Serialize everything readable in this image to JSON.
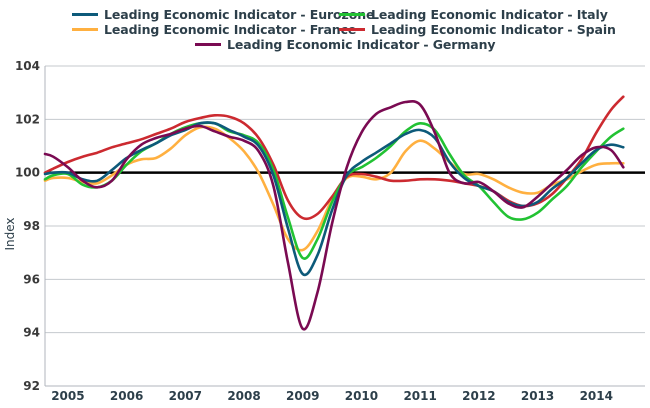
{
  "chart_data": {
    "type": "line",
    "title": "",
    "xlabel": "",
    "ylabel": "Index",
    "ylim": [
      92,
      104
    ],
    "xlim": [
      2005.11,
      2015.33
    ],
    "yticks": [
      92,
      94,
      96,
      98,
      100,
      102,
      104
    ],
    "xtick_labels": [
      "2005",
      "2006",
      "2007",
      "2008",
      "2009",
      "2010",
      "2011",
      "2012",
      "2013",
      "2014"
    ],
    "xtick_positions": [
      2005.5,
      2006.5,
      2007.5,
      2008.5,
      2009.5,
      2010.5,
      2011.5,
      2012.5,
      2013.5,
      2014.5
    ],
    "reference_line": {
      "y": 100,
      "color": "#000000"
    },
    "grid": "horizontal",
    "legend_position": "top",
    "x": [
      2005.11,
      2005.25,
      2005.5,
      2005.75,
      2006.0,
      2006.25,
      2006.5,
      2006.75,
      2007.0,
      2007.25,
      2007.5,
      2007.75,
      2008.0,
      2008.25,
      2008.5,
      2008.75,
      2009.0,
      2009.25,
      2009.5,
      2009.75,
      2010.0,
      2010.25,
      2010.5,
      2010.75,
      2011.0,
      2011.25,
      2011.5,
      2011.75,
      2012.0,
      2012.25,
      2012.5,
      2012.75,
      2013.0,
      2013.25,
      2013.5,
      2013.75,
      2014.0,
      2014.25,
      2014.5,
      2014.75,
      2014.96
    ],
    "series": [
      {
        "name": "Leading Economic Indicator - Eurozone",
        "color": "#0d5a7a",
        "values": [
          99.95,
          100.0,
          100.0,
          99.75,
          99.7,
          100.1,
          100.55,
          100.85,
          101.1,
          101.4,
          101.6,
          101.85,
          101.85,
          101.6,
          101.35,
          101.0,
          99.9,
          97.9,
          96.2,
          96.9,
          98.6,
          99.9,
          100.4,
          100.75,
          101.1,
          101.45,
          101.6,
          101.3,
          100.4,
          99.8,
          99.5,
          99.3,
          98.9,
          98.75,
          98.9,
          99.4,
          99.8,
          100.35,
          100.85,
          101.05,
          100.95
        ]
      },
      {
        "name": "Leading Economic Indicator - Italy",
        "color": "#22c233",
        "values": [
          99.75,
          99.9,
          99.95,
          99.55,
          99.45,
          99.7,
          100.3,
          100.8,
          101.1,
          101.45,
          101.7,
          101.85,
          101.85,
          101.55,
          101.4,
          101.1,
          100.1,
          98.3,
          96.8,
          97.5,
          98.9,
          99.9,
          100.2,
          100.55,
          101.0,
          101.55,
          101.85,
          101.6,
          100.7,
          99.9,
          99.5,
          98.9,
          98.35,
          98.25,
          98.5,
          99.0,
          99.5,
          100.2,
          100.8,
          101.35,
          101.65
        ]
      },
      {
        "name": "Leading Economic Indicator - France",
        "color": "#ffb040",
        "values": [
          99.7,
          99.8,
          99.8,
          99.65,
          99.6,
          99.9,
          100.3,
          100.5,
          100.55,
          100.9,
          101.4,
          101.7,
          101.65,
          101.3,
          100.8,
          100.0,
          98.8,
          97.5,
          97.1,
          97.8,
          99.0,
          99.8,
          99.85,
          99.75,
          100.0,
          100.8,
          101.2,
          100.9,
          100.4,
          99.95,
          99.95,
          99.75,
          99.45,
          99.25,
          99.25,
          99.55,
          99.75,
          100.05,
          100.3,
          100.35,
          100.35
        ]
      },
      {
        "name": "Leading Economic Indicator - Spain",
        "color": "#cc2a30",
        "values": [
          100.0,
          100.15,
          100.4,
          100.6,
          100.75,
          100.95,
          101.1,
          101.25,
          101.45,
          101.65,
          101.9,
          102.05,
          102.15,
          102.1,
          101.85,
          101.3,
          100.3,
          98.95,
          98.3,
          98.45,
          99.1,
          99.85,
          99.95,
          99.85,
          99.7,
          99.7,
          99.75,
          99.75,
          99.7,
          99.6,
          99.5,
          99.3,
          98.95,
          98.75,
          98.85,
          99.2,
          99.8,
          100.5,
          101.5,
          102.35,
          102.85
        ]
      },
      {
        "name": "Leading Economic Indicator - Germany",
        "color": "#7a0a52",
        "values": [
          100.7,
          100.6,
          100.2,
          99.7,
          99.45,
          99.7,
          100.5,
          101.05,
          101.3,
          101.45,
          101.65,
          101.75,
          101.55,
          101.35,
          101.2,
          100.8,
          99.5,
          96.6,
          94.15,
          95.5,
          98.1,
          100.2,
          101.5,
          102.2,
          102.45,
          102.65,
          102.55,
          101.5,
          100.0,
          99.6,
          99.65,
          99.3,
          98.85,
          98.7,
          99.1,
          99.6,
          100.1,
          100.65,
          100.95,
          100.85,
          100.2
        ]
      }
    ]
  },
  "legend": {
    "items": [
      {
        "label": "Leading Economic Indicator - Eurozone",
        "color": "#0d5a7a"
      },
      {
        "label": "Leading Economic Indicator - Italy",
        "color": "#22c233"
      },
      {
        "label": "Leading Economic Indicator - France",
        "color": "#ffb040"
      },
      {
        "label": "Leading Economic Indicator - Spain",
        "color": "#cc2a30"
      },
      {
        "label": "Leading Economic Indicator - Germany",
        "color": "#7a0a52"
      }
    ]
  }
}
